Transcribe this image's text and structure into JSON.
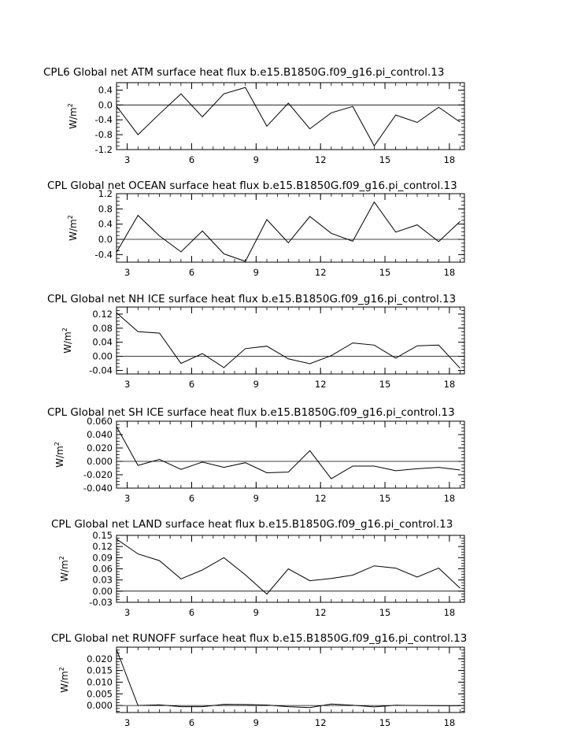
{
  "chart_data": [
    {
      "type": "line",
      "title": "CPL6 Global net ATM surface heat flux b.e15.B1850G.f09_g16.pi_control.13",
      "ylabel": "W/m",
      "ylabel_sup": "2",
      "xlim": [
        2.5,
        18.7
      ],
      "ylim": [
        -1.2,
        0.6
      ],
      "xticks": [
        "3",
        "6",
        "9",
        "12",
        "15",
        "18"
      ],
      "yticks": [
        "0.4",
        "0.0",
        "-0.4",
        "-0.8",
        "-1.2"
      ],
      "series": [
        {
          "x": [
            2.5,
            3.5,
            4.5,
            5.5,
            6.5,
            7.5,
            8.5,
            9.5,
            10.5,
            11.5,
            12.5,
            13.5,
            14.5,
            15.5,
            16.5,
            17.5,
            18.5
          ],
          "values": [
            -0.03,
            -0.8,
            -0.24,
            0.3,
            -0.32,
            0.3,
            0.47,
            -0.57,
            0.05,
            -0.64,
            -0.21,
            -0.04,
            -1.1,
            -0.27,
            -0.47,
            -0.06,
            -0.46
          ]
        }
      ]
    },
    {
      "type": "line",
      "title": "CPL Global net OCEAN surface heat flux b.e15.B1850G.f09_g16.pi_control.13",
      "ylabel": "W/m",
      "ylabel_sup": "2",
      "xlim": [
        2.5,
        18.7
      ],
      "ylim": [
        -0.6,
        1.2
      ],
      "xticks": [
        "3",
        "6",
        "9",
        "12",
        "15",
        "18"
      ],
      "yticks": [
        "1.2",
        "0.8",
        "0.4",
        "0.0",
        "-0.4"
      ],
      "series": [
        {
          "x": [
            2.5,
            3.5,
            4.5,
            5.5,
            6.5,
            7.5,
            8.5,
            9.5,
            10.5,
            11.5,
            12.5,
            13.5,
            14.5,
            15.5,
            16.5,
            17.5,
            18.5
          ],
          "values": [
            -0.34,
            0.63,
            0.09,
            -0.33,
            0.22,
            -0.38,
            -0.58,
            0.52,
            -0.09,
            0.6,
            0.16,
            -0.05,
            0.98,
            0.19,
            0.38,
            -0.06,
            0.47
          ]
        }
      ]
    },
    {
      "type": "line",
      "title": "CPL Global net NH ICE surface heat flux b.e15.B1850G.f09_g16.pi_control.13",
      "ylabel": "W/m",
      "ylabel_sup": "2",
      "xlim": [
        2.5,
        18.7
      ],
      "ylim": [
        -0.05,
        0.14
      ],
      "xticks": [
        "3",
        "6",
        "9",
        "12",
        "15",
        "18"
      ],
      "yticks": [
        "0.12",
        "0.08",
        "0.04",
        "0.00",
        "-0.04"
      ],
      "series": [
        {
          "x": [
            2.5,
            3.5,
            4.5,
            5.5,
            6.5,
            7.5,
            8.5,
            9.5,
            10.5,
            11.5,
            12.5,
            13.5,
            14.5,
            15.5,
            16.5,
            17.5,
            18.5
          ],
          "values": [
            0.124,
            0.07,
            0.066,
            -0.02,
            0.008,
            -0.032,
            0.022,
            0.029,
            -0.007,
            -0.021,
            0.002,
            0.038,
            0.032,
            -0.005,
            0.03,
            0.032,
            -0.034
          ]
        }
      ]
    },
    {
      "type": "line",
      "title": "CPL Global net SH ICE surface heat flux b.e15.B1850G.f09_g16.pi_control.13",
      "ylabel": "W/m",
      "ylabel_sup": "2",
      "xlim": [
        2.5,
        18.7
      ],
      "ylim": [
        -0.04,
        0.06
      ],
      "xticks": [
        "3",
        "6",
        "9",
        "12",
        "15",
        "18"
      ],
      "yticks": [
        "0.060",
        "0.040",
        "0.020",
        "0.000",
        "-0.020",
        "-0.040"
      ],
      "series": [
        {
          "x": [
            2.5,
            3.5,
            4.5,
            5.5,
            6.5,
            7.5,
            8.5,
            9.5,
            10.5,
            11.5,
            12.5,
            13.5,
            14.5,
            15.5,
            16.5,
            17.5,
            18.5
          ],
          "values": [
            0.052,
            -0.006,
            0.003,
            -0.012,
            -0.001,
            -0.009,
            -0.002,
            -0.017,
            -0.016,
            0.016,
            -0.026,
            -0.007,
            -0.007,
            -0.014,
            -0.011,
            -0.009,
            -0.013
          ]
        }
      ]
    },
    {
      "type": "line",
      "title": "CPL Global net LAND surface heat flux b.e15.B1850G.f09_g16.pi_control.13",
      "ylabel": "W/m",
      "ylabel_sup": "2",
      "xlim": [
        2.5,
        18.7
      ],
      "ylim": [
        -0.03,
        0.15
      ],
      "xticks": [
        "3",
        "6",
        "9",
        "12",
        "15",
        "18"
      ],
      "yticks": [
        "0.15",
        "0.12",
        "0.09",
        "0.06",
        "0.03",
        "0.00",
        "-0.03"
      ],
      "series": [
        {
          "x": [
            2.5,
            3.5,
            4.5,
            5.5,
            6.5,
            7.5,
            8.5,
            9.5,
            10.5,
            11.5,
            12.5,
            13.5,
            14.5,
            15.5,
            16.5,
            17.5,
            18.5
          ],
          "values": [
            0.14,
            0.1,
            0.082,
            0.033,
            0.057,
            0.09,
            0.044,
            -0.008,
            0.06,
            0.028,
            0.034,
            0.043,
            0.068,
            0.062,
            0.038,
            0.062,
            0.008
          ]
        }
      ]
    },
    {
      "type": "line",
      "title": "CPL Global net RUNOFF surface heat flux b.e15.B1850G.f09_g16.pi_control.13",
      "ylabel": "W/m",
      "ylabel_sup": "2",
      "xlim": [
        2.5,
        18.7
      ],
      "ylim": [
        -0.003,
        0.025
      ],
      "xticks": [
        "3",
        "6",
        "9",
        "12",
        "15",
        "18"
      ],
      "yticks": [
        "0.020",
        "0.015",
        "0.010",
        "0.005",
        "0.000"
      ],
      "series": [
        {
          "x": [
            2.5,
            3.5,
            4.5,
            5.5,
            6.5,
            7.5,
            8.5,
            9.5,
            10.5,
            11.5,
            12.5,
            13.5,
            14.5,
            15.5,
            16.5,
            17.5,
            18.5
          ],
          "values": [
            0.024,
            0.0,
            0.0003,
            -0.0005,
            -0.0005,
            0.0005,
            0.0004,
            0.0002,
            -0.0005,
            -0.0009,
            0.0006,
            0.0001,
            -0.0006,
            0.0001,
            0.0,
            -0.0001,
            -0.0001
          ]
        }
      ]
    }
  ]
}
